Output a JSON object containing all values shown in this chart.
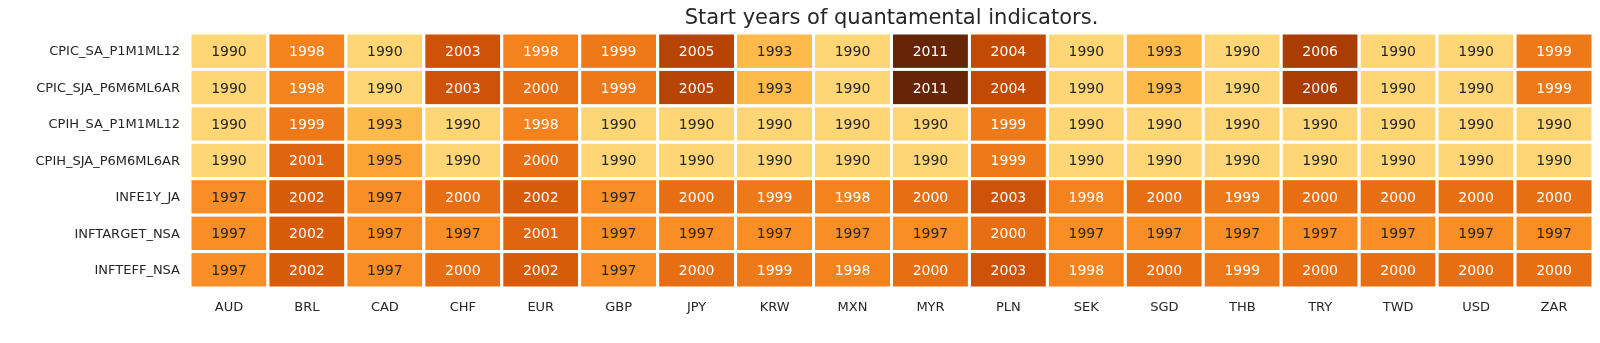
{
  "chart_data": {
    "type": "heatmap",
    "title": "Start years of quantamental indicators.",
    "categories": [
      "AUD",
      "BRL",
      "CAD",
      "CHF",
      "EUR",
      "GBP",
      "JPY",
      "KRW",
      "MXN",
      "MYR",
      "PLN",
      "SEK",
      "SGD",
      "THB",
      "TRY",
      "TWD",
      "USD",
      "ZAR"
    ],
    "y_categories": [
      "CPIC_SA_P1M1ML12",
      "CPIC_SJA_P6M6ML6AR",
      "CPIH_SA_P1M1ML12",
      "CPIH_SJA_P6M6ML6AR",
      "INFE1Y_JA",
      "INFTARGET_NSA",
      "INFTEFF_NSA"
    ],
    "cells": [
      [
        1990,
        1998,
        1990,
        2003,
        1998,
        1999,
        2005,
        1993,
        1990,
        2011,
        2004,
        1990,
        1993,
        1990,
        2006,
        1990,
        1990,
        1999
      ],
      [
        1990,
        1998,
        1990,
        2003,
        2000,
        1999,
        2005,
        1993,
        1990,
        2011,
        2004,
        1990,
        1993,
        1990,
        2006,
        1990,
        1990,
        1999
      ],
      [
        1990,
        1999,
        1993,
        1990,
        1998,
        1990,
        1990,
        1990,
        1990,
        1990,
        1999,
        1990,
        1990,
        1990,
        1990,
        1990,
        1990,
        1990
      ],
      [
        1990,
        2001,
        1995,
        1990,
        2000,
        1990,
        1990,
        1990,
        1990,
        1990,
        1999,
        1990,
        1990,
        1990,
        1990,
        1990,
        1990,
        1990
      ],
      [
        1997,
        2002,
        1997,
        2000,
        2002,
        1997,
        2000,
        1999,
        1998,
        2000,
        2003,
        1998,
        2000,
        1999,
        2000,
        2000,
        2000,
        2000
      ],
      [
        1997,
        2002,
        1997,
        1997,
        2001,
        1997,
        1997,
        1997,
        1997,
        1997,
        2000,
        1997,
        1997,
        1997,
        1997,
        1997,
        1997,
        1997
      ],
      [
        1997,
        2002,
        1997,
        2000,
        2002,
        1997,
        2000,
        1999,
        1998,
        2000,
        2003,
        1998,
        2000,
        1999,
        2000,
        2000,
        2000,
        2000
      ]
    ],
    "data_labels": true
  }
}
